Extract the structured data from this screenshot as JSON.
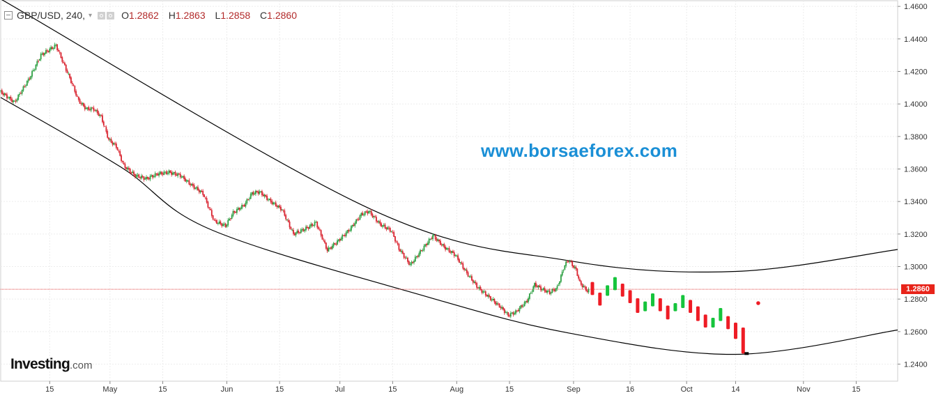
{
  "header": {
    "symbol": "GBP/USD, 240,",
    "caret": "▾",
    "open_label": "O",
    "open_value": "1.2862",
    "high_label": "H",
    "high_value": "1.2863",
    "low_label": "L",
    "low_value": "1.2858",
    "close_label": "C",
    "close_value": "1.2860"
  },
  "watermark": "www.borsaeforex.com",
  "brand": {
    "name": "Investing",
    "domain": ".com"
  },
  "current_price_tag": "1.2860",
  "colors": {
    "up": "#2ea043",
    "down": "#d9232f",
    "projection_up": "#16c43c",
    "projection_down": "#ee1c25",
    "price_line": "#e04040",
    "watermark": "#1a8fd6",
    "channel": "#000000"
  },
  "chart_data": {
    "type": "candlestick",
    "symbol": "GBP/USD",
    "timeframe": "240",
    "y_axis": {
      "ticks": [
        "1.4600",
        "1.4400",
        "1.4200",
        "1.4000",
        "1.3800",
        "1.3600",
        "1.3400",
        "1.3200",
        "1.3000",
        "1.2800",
        "1.2600",
        "1.2400"
      ],
      "range": [
        1.2295,
        1.4635
      ],
      "position": "right"
    },
    "x_axis": {
      "ticks": [
        {
          "label": "15",
          "date": "2018-04-15"
        },
        {
          "label": "May",
          "date": "2018-05-01"
        },
        {
          "label": "15",
          "date": "2018-05-15"
        },
        {
          "label": "Jun",
          "date": "2018-06-01"
        },
        {
          "label": "15",
          "date": "2018-06-15"
        },
        {
          "label": "Jul",
          "date": "2018-07-01"
        },
        {
          "label": "15",
          "date": "2018-07-15"
        },
        {
          "label": "Aug",
          "date": "2018-08-01"
        },
        {
          "label": "15",
          "date": "2018-08-15"
        },
        {
          "label": "Sep",
          "date": "2018-09-01"
        },
        {
          "label": "16",
          "date": "2018-09-16"
        },
        {
          "label": "Oct",
          "date": "2018-10-01"
        },
        {
          "label": "14",
          "date": "2018-10-14"
        },
        {
          "label": "Nov",
          "date": "2018-11-01"
        },
        {
          "label": "15",
          "date": "2018-11-15"
        }
      ],
      "range": [
        "2018-04-02",
        "2018-11-26"
      ]
    },
    "grid": true,
    "current_price": 1.286,
    "history_path": [
      [
        "2018-04-02",
        1.408
      ],
      [
        "2018-04-06",
        1.401
      ],
      [
        "2018-04-10",
        1.416
      ],
      [
        "2018-04-13",
        1.43
      ],
      [
        "2018-04-15",
        1.433
      ],
      [
        "2018-04-17",
        1.436
      ],
      [
        "2018-04-19",
        1.425
      ],
      [
        "2018-04-21",
        1.414
      ],
      [
        "2018-04-23",
        1.402
      ],
      [
        "2018-04-25",
        1.397
      ],
      [
        "2018-04-27",
        1.397
      ],
      [
        "2018-04-29",
        1.392
      ],
      [
        "2018-05-01",
        1.378
      ],
      [
        "2018-05-03",
        1.374
      ],
      [
        "2018-05-05",
        1.362
      ],
      [
        "2018-05-08",
        1.356
      ],
      [
        "2018-05-11",
        1.354
      ],
      [
        "2018-05-14",
        1.357
      ],
      [
        "2018-05-17",
        1.358
      ],
      [
        "2018-05-20",
        1.356
      ],
      [
        "2018-05-23",
        1.35
      ],
      [
        "2018-05-26",
        1.345
      ],
      [
        "2018-05-29",
        1.328
      ],
      [
        "2018-06-01",
        1.325
      ],
      [
        "2018-06-03",
        1.333
      ],
      [
        "2018-06-06",
        1.338
      ],
      [
        "2018-06-08",
        1.345
      ],
      [
        "2018-06-10",
        1.346
      ],
      [
        "2018-06-13",
        1.34
      ],
      [
        "2018-06-16",
        1.335
      ],
      [
        "2018-06-19",
        1.32
      ],
      [
        "2018-06-22",
        1.323
      ],
      [
        "2018-06-25",
        1.327
      ],
      [
        "2018-06-28",
        1.31
      ],
      [
        "2018-07-01",
        1.316
      ],
      [
        "2018-07-04",
        1.323
      ],
      [
        "2018-07-07",
        1.332
      ],
      [
        "2018-07-09",
        1.334
      ],
      [
        "2018-07-12",
        1.326
      ],
      [
        "2018-07-15",
        1.322
      ],
      [
        "2018-07-17",
        1.311
      ],
      [
        "2018-07-20",
        1.301
      ],
      [
        "2018-07-23",
        1.31
      ],
      [
        "2018-07-26",
        1.319
      ],
      [
        "2018-07-29",
        1.312
      ],
      [
        "2018-08-01",
        1.307
      ],
      [
        "2018-08-04",
        1.296
      ],
      [
        "2018-08-07",
        1.287
      ],
      [
        "2018-08-10",
        1.281
      ],
      [
        "2018-08-13",
        1.275
      ],
      [
        "2018-08-15",
        1.27
      ],
      [
        "2018-08-17",
        1.272
      ],
      [
        "2018-08-20",
        1.279
      ],
      [
        "2018-08-22",
        1.289
      ],
      [
        "2018-08-24",
        1.286
      ],
      [
        "2018-08-26",
        1.284
      ],
      [
        "2018-08-28",
        1.287
      ],
      [
        "2018-08-30",
        1.301
      ],
      [
        "2018-08-31",
        1.304
      ],
      [
        "2018-09-02",
        1.298
      ],
      [
        "2018-09-03",
        1.29
      ],
      [
        "2018-09-05",
        1.285
      ]
    ],
    "projection_bars": [
      {
        "date": "2018-09-06",
        "open": 1.2905,
        "close": 1.2825
      },
      {
        "date": "2018-09-08",
        "open": 1.284,
        "close": 1.276
      },
      {
        "date": "2018-09-10",
        "open": 1.282,
        "close": 1.2885
      },
      {
        "date": "2018-09-12",
        "open": 1.2855,
        "close": 1.2935
      },
      {
        "date": "2018-09-14",
        "open": 1.2895,
        "close": 1.2815
      },
      {
        "date": "2018-09-16",
        "open": 1.2855,
        "close": 1.2775
      },
      {
        "date": "2018-09-18",
        "open": 1.2805,
        "close": 1.2715
      },
      {
        "date": "2018-09-20",
        "open": 1.2725,
        "close": 1.2785
      },
      {
        "date": "2018-09-22",
        "open": 1.2755,
        "close": 1.2835
      },
      {
        "date": "2018-09-24",
        "open": 1.2805,
        "close": 1.2725
      },
      {
        "date": "2018-09-26",
        "open": 1.276,
        "close": 1.2675
      },
      {
        "date": "2018-09-28",
        "open": 1.2725,
        "close": 1.2775
      },
      {
        "date": "2018-09-30",
        "open": 1.2745,
        "close": 1.2825
      },
      {
        "date": "2018-10-02",
        "open": 1.2795,
        "close": 1.2715
      },
      {
        "date": "2018-10-04",
        "open": 1.2755,
        "close": 1.2665
      },
      {
        "date": "2018-10-06",
        "open": 1.2705,
        "close": 1.2625
      },
      {
        "date": "2018-10-08",
        "open": 1.2625,
        "close": 1.2685
      },
      {
        "date": "2018-10-10",
        "open": 1.2665,
        "close": 1.2745
      },
      {
        "date": "2018-10-12",
        "open": 1.2695,
        "close": 1.2615
      },
      {
        "date": "2018-10-14",
        "open": 1.2655,
        "close": 1.2555
      },
      {
        "date": "2018-10-16",
        "open": 1.2625,
        "close": 1.2465
      }
    ],
    "projection_target": {
      "date": "2018-10-16",
      "value": 1.2465
    },
    "projection_dot": {
      "date": "2018-10-20",
      "value": 1.2775
    },
    "channel_lines": [
      {
        "name": "upper",
        "points": [
          [
            "2018-04-02",
            1.4645
          ],
          [
            "2018-07-09",
            1.3355
          ],
          [
            "2018-08-31",
            1.3035
          ],
          [
            "2018-10-14",
            1.297
          ],
          [
            "2018-11-26",
            1.3105
          ]
        ]
      },
      {
        "name": "lower",
        "points": [
          [
            "2018-04-02",
            1.404
          ],
          [
            "2018-05-04",
            1.361
          ],
          [
            "2018-05-28",
            1.3225
          ],
          [
            "2018-07-24",
            1.2815
          ],
          [
            "2018-08-31",
            1.259
          ],
          [
            "2018-10-14",
            1.246
          ],
          [
            "2018-11-26",
            1.261
          ]
        ]
      }
    ]
  }
}
